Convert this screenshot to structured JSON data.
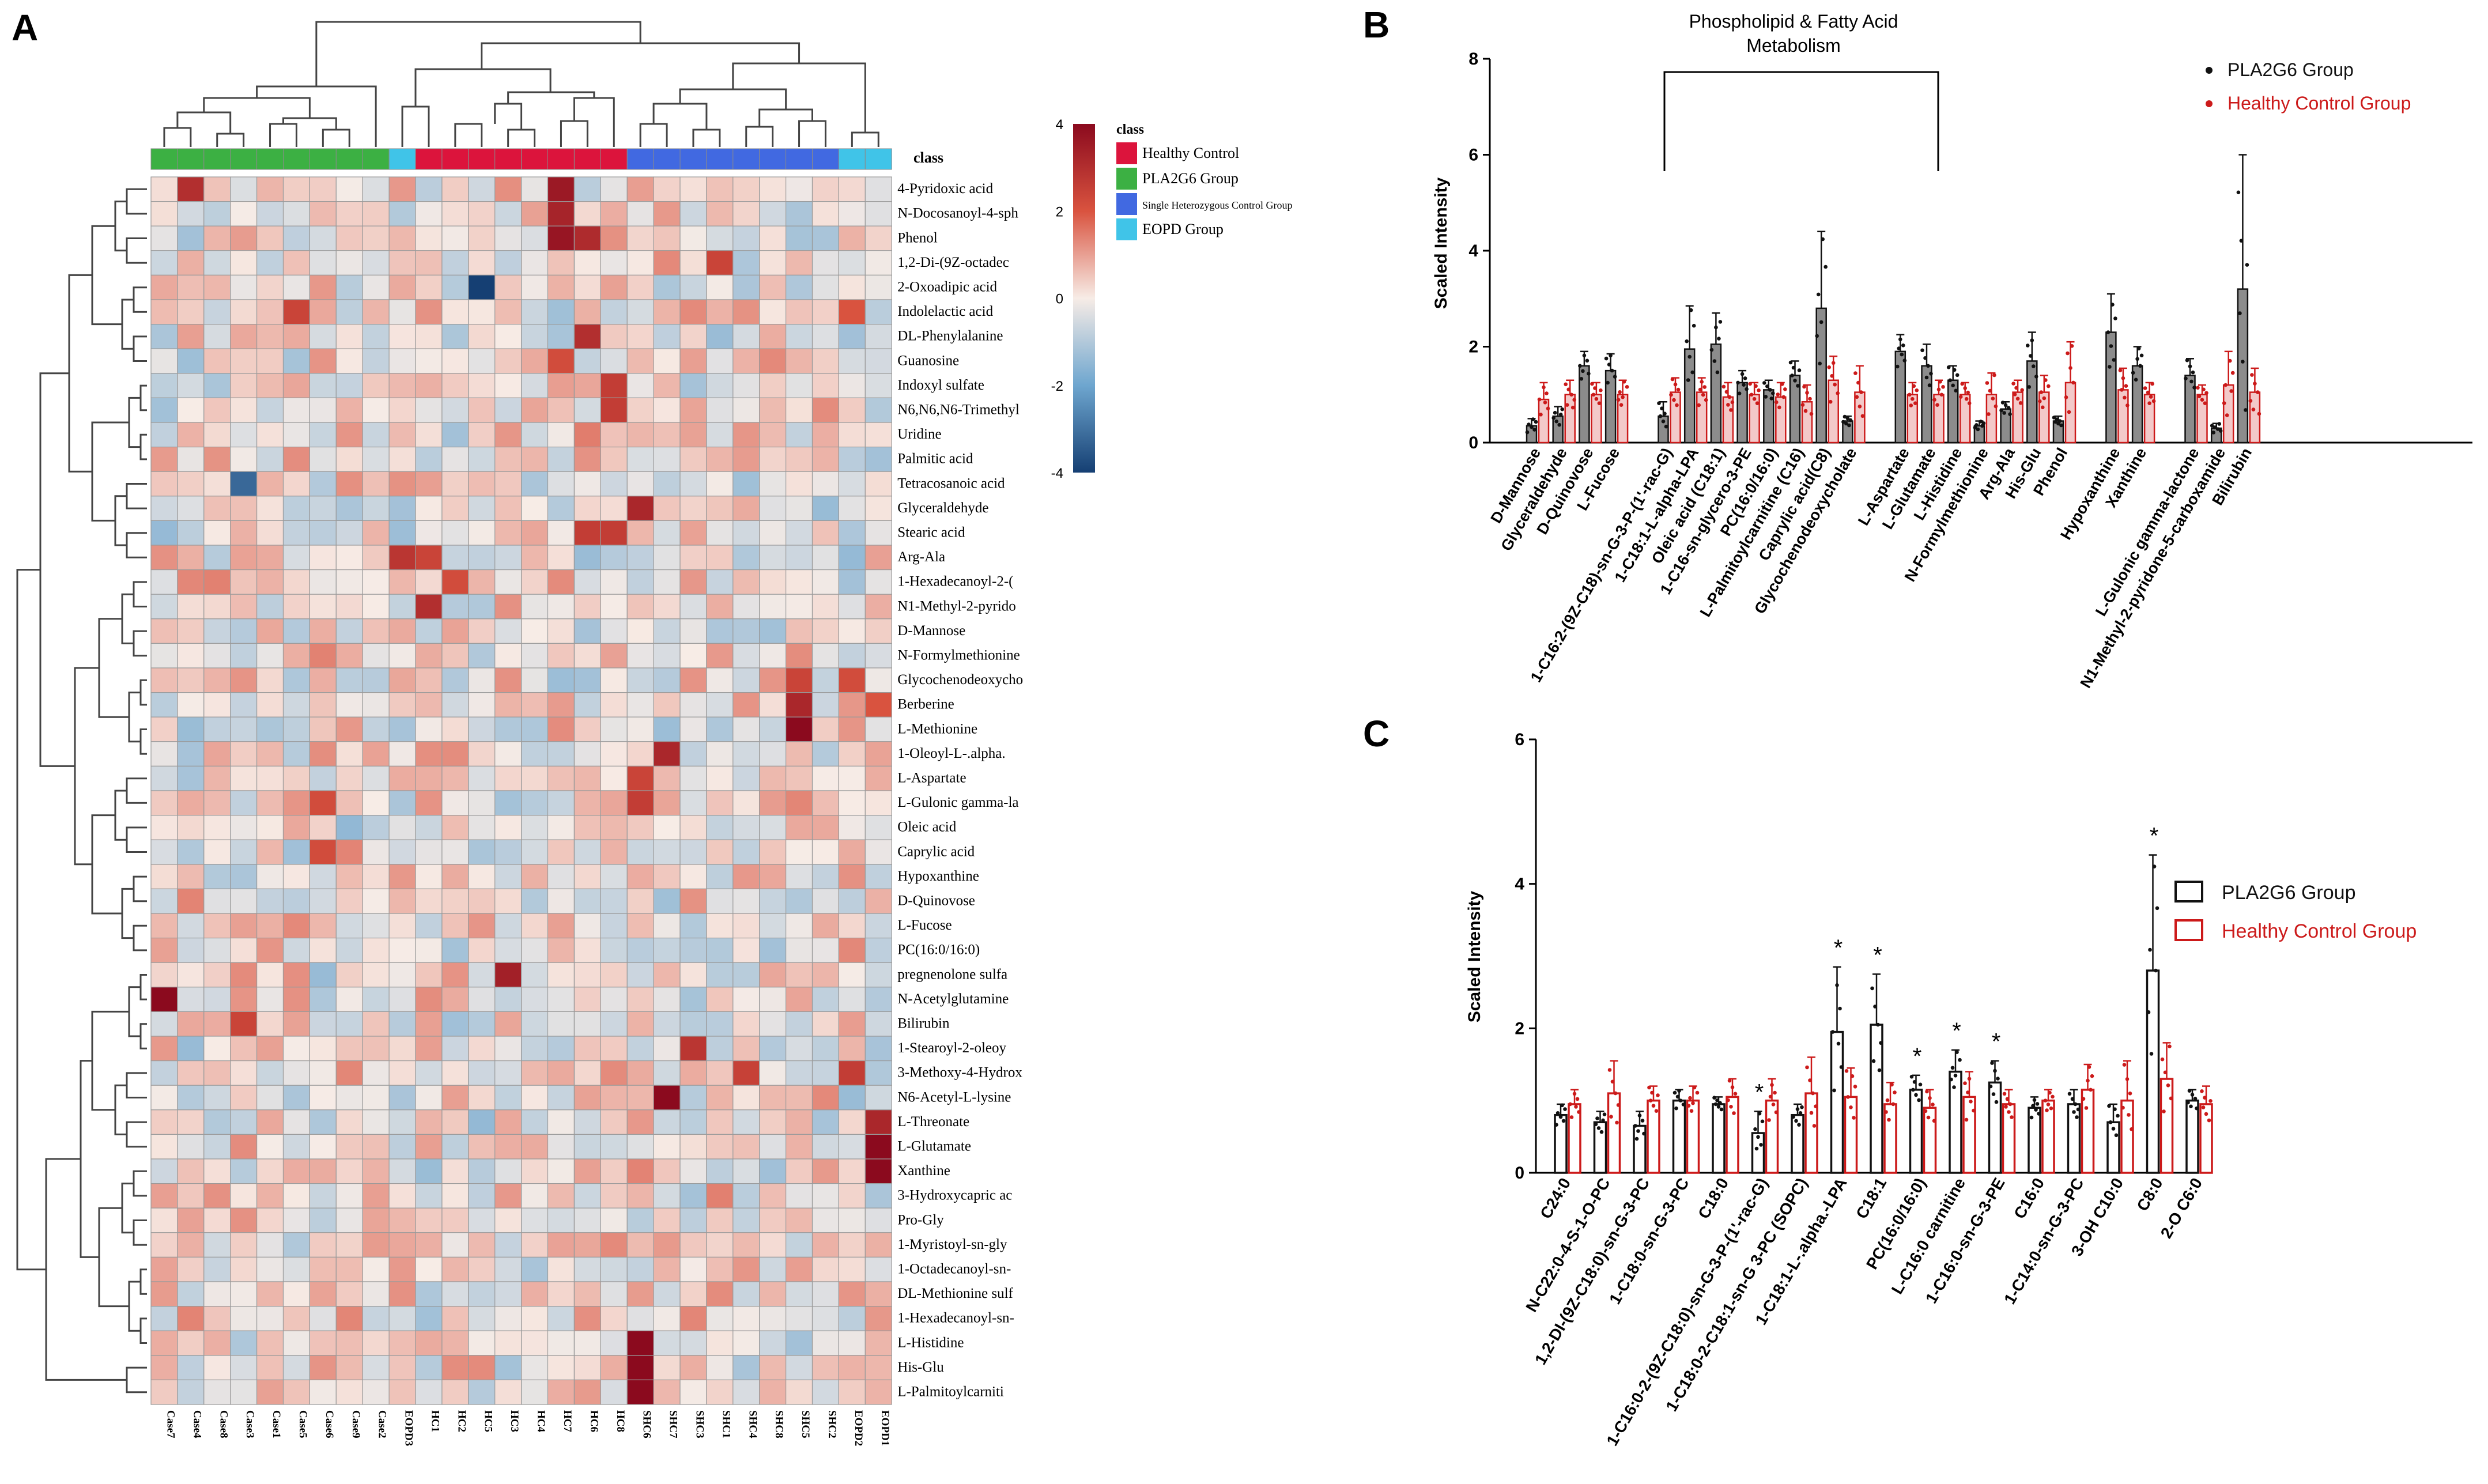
{
  "panels": {
    "A": "A",
    "B": "B",
    "C": "C"
  },
  "heatmap": {
    "class_label": "class",
    "legend_title": "class",
    "legend_entries": [
      {
        "label": "Healthy Control",
        "color": "#dc143c"
      },
      {
        "label": "PLA2G6 Group",
        "color": "#3cb043"
      },
      {
        "label": "Single Heterozygous Control Group",
        "color": "#4169e1"
      },
      {
        "label": "EOPD Group",
        "color": "#40c4e8"
      }
    ],
    "colorscale": {
      "ticks": [
        4,
        2,
        0,
        -2,
        -4
      ],
      "stops": [
        "#8b0a1e",
        "#d9533f",
        "#f7ece6",
        "#6ea6cf",
        "#153f73"
      ]
    },
    "columns": [
      "Case7",
      "Case4",
      "Case8",
      "Case3",
      "Case1",
      "Case5",
      "Case6",
      "Case9",
      "Case2",
      "EOPD3",
      "HC1",
      "HC2",
      "HC5",
      "HC3",
      "HC4",
      "HC7",
      "HC6",
      "HC8",
      "SHC6",
      "SHC7",
      "SHC3",
      "SHC1",
      "SHC4",
      "SHC8",
      "SHC5",
      "SHC2",
      "EOPD2",
      "EOPD1"
    ],
    "column_groups": [
      1,
      1,
      1,
      1,
      1,
      1,
      1,
      1,
      1,
      3,
      0,
      0,
      0,
      0,
      0,
      0,
      0,
      0,
      2,
      2,
      2,
      2,
      2,
      2,
      2,
      2,
      3,
      3
    ],
    "rows": [
      "4-Pyridoxic acid",
      "N-Docosanoyl-4-sph",
      "Phenol",
      "1,2-Di-(9Z-octadec",
      "2-Oxoadipic acid",
      "Indolelactic acid",
      "DL-Phenylalanine",
      "Guanosine",
      "Indoxyl sulfate",
      "N6,N6,N6-Trimethyl",
      "Uridine",
      "Palmitic acid",
      "Tetracosanoic acid",
      "Glyceraldehyde",
      "Stearic acid",
      "Arg-Ala",
      "1-Hexadecanoyl-2-(",
      "N1-Methyl-2-pyrido",
      "D-Mannose",
      "N-Formylmethionine",
      "Glycochenodeoxycho",
      "Berberine",
      "L-Methionine",
      "1-Oleoyl-L-.alpha.",
      "L-Aspartate",
      "L-Gulonic gamma-la",
      "Oleic acid",
      "Caprylic acid",
      "Hypoxanthine",
      "D-Quinovose",
      "L-Fucose",
      "PC(16:0/16:0)",
      "pregnenolone sulfa",
      "N-Acetylglutamine",
      "Bilirubin",
      "1-Stearoyl-2-oleoy",
      "3-Methoxy-4-Hydrox",
      "N6-Acetyl-L-lysine",
      "L-Threonate",
      "L-Glutamate",
      "Xanthine",
      "3-Hydroxycapric ac",
      "Pro-Gly",
      "1-Myristoyl-sn-gly",
      "1-Octadecanoyl-sn-",
      "DL-Methionine sulf",
      "1-Hexadecanoyl-sn-",
      "L-Histidine",
      "His-Glu",
      "L-Palmitoylcarniti"
    ],
    "highlights": [
      {
        "row": 0,
        "col": 1,
        "value": 3.0
      },
      {
        "row": 0,
        "col": 15,
        "value": 3.6
      },
      {
        "row": 1,
        "col": 15,
        "value": 3.3
      },
      {
        "row": 2,
        "col": 15,
        "value": 3.7
      },
      {
        "row": 2,
        "col": 16,
        "value": 3.1
      },
      {
        "row": 3,
        "col": 21,
        "value": 2.4
      },
      {
        "row": 4,
        "col": 12,
        "value": -4.2
      },
      {
        "row": 5,
        "col": 5,
        "value": 2.4
      },
      {
        "row": 5,
        "col": 26,
        "value": 2.0
      },
      {
        "row": 6,
        "col": 16,
        "value": 3.0
      },
      {
        "row": 7,
        "col": 15,
        "value": 2.2
      },
      {
        "row": 8,
        "col": 17,
        "value": 2.6
      },
      {
        "row": 9,
        "col": 17,
        "value": 2.6
      },
      {
        "row": 12,
        "col": 3,
        "value": -3.2
      },
      {
        "row": 13,
        "col": 18,
        "value": 3.2
      },
      {
        "row": 14,
        "col": 16,
        "value": 2.6
      },
      {
        "row": 14,
        "col": 17,
        "value": 2.6
      },
      {
        "row": 15,
        "col": 9,
        "value": 2.8
      },
      {
        "row": 15,
        "col": 10,
        "value": 2.4
      },
      {
        "row": 16,
        "col": 11,
        "value": 2.2
      },
      {
        "row": 17,
        "col": 10,
        "value": 3.0
      },
      {
        "row": 20,
        "col": 24,
        "value": 2.4
      },
      {
        "row": 20,
        "col": 26,
        "value": 2.2
      },
      {
        "row": 21,
        "col": 24,
        "value": 3.2
      },
      {
        "row": 21,
        "col": 27,
        "value": 2.0
      },
      {
        "row": 22,
        "col": 24,
        "value": 4.4
      },
      {
        "row": 23,
        "col": 19,
        "value": 3.2
      },
      {
        "row": 24,
        "col": 18,
        "value": 2.4
      },
      {
        "row": 25,
        "col": 18,
        "value": 2.6
      },
      {
        "row": 25,
        "col": 6,
        "value": 2.2
      },
      {
        "row": 27,
        "col": 6,
        "value": 2.2
      },
      {
        "row": 32,
        "col": 13,
        "value": 3.4
      },
      {
        "row": 33,
        "col": 0,
        "value": 4.1
      },
      {
        "row": 34,
        "col": 3,
        "value": 2.4
      },
      {
        "row": 35,
        "col": 20,
        "value": 2.8
      },
      {
        "row": 36,
        "col": 22,
        "value": 2.5
      },
      {
        "row": 36,
        "col": 26,
        "value": 2.6
      },
      {
        "row": 37,
        "col": 19,
        "value": 4.0
      },
      {
        "row": 38,
        "col": 27,
        "value": 3.2
      },
      {
        "row": 39,
        "col": 27,
        "value": 4.2
      },
      {
        "row": 40,
        "col": 27,
        "value": 4.2
      },
      {
        "row": 47,
        "col": 18,
        "value": 4.0
      },
      {
        "row": 48,
        "col": 18,
        "value": 4.2
      },
      {
        "row": 49,
        "col": 18,
        "value": 4.3
      }
    ]
  },
  "chart_data": [
    {
      "type": "bar",
      "panel": "B",
      "title": "",
      "xlabel": "",
      "ylabel": "Scaled Intensity",
      "ylim": [
        0,
        8
      ],
      "yticks": [
        0,
        2,
        4,
        6,
        8
      ],
      "annotation": "Phospholipid & Fatty Acid Metabolism",
      "legend_position": "top-right",
      "categories": [
        "D-Mannose",
        "Glyceraldehyde",
        "D-Quinovose",
        "L-Fucose",
        "1-C16:2-(9Z-C18)-sn-G-3-P-(1'-rac-G)",
        "1-C18:1-L-alpha-LPA",
        "Oleic acid (C18:1)",
        "1-C16-sn-glycero-3-PE",
        "PC(16:0/16:0)",
        "L-Palmitoylcarnitine (C16)",
        "Caprylic acid(C8)",
        "Glycochenodeoxycholate",
        "L-Aspartate",
        "L-Glutamate",
        "L-Histidine",
        "N-Formylmethionine",
        "Arg-Ala",
        "His-Glu",
        "Phenol",
        "Hypoxanthine",
        "Xanthine",
        "L-Gulonic gamma-lactone",
        "N1-Methyl-2-pyridone-5-carboxamide",
        "Bilirubin"
      ],
      "series": [
        {
          "name": "PLA2G6 Group",
          "color": "#111111",
          "values": [
            0.35,
            0.55,
            1.6,
            1.5,
            0.55,
            1.95,
            2.05,
            1.25,
            1.1,
            1.4,
            2.8,
            0.45,
            1.9,
            1.6,
            1.3,
            0.35,
            0.7,
            1.7,
            0.45,
            2.3,
            1.6,
            1.4,
            0.3,
            3.2
          ],
          "errors": [
            0.15,
            0.2,
            0.3,
            0.35,
            0.3,
            0.9,
            0.65,
            0.25,
            0.2,
            0.3,
            1.6,
            0.1,
            0.35,
            0.45,
            0.3,
            0.1,
            0.15,
            0.6,
            0.1,
            0.8,
            0.4,
            0.35,
            0.1,
            2.8
          ]
        },
        {
          "name": "Healthy Control Group",
          "color": "#cc1a1a",
          "values": [
            0.9,
            1.0,
            1.0,
            1.0,
            1.05,
            1.05,
            0.95,
            1.0,
            0.95,
            0.85,
            1.3,
            1.05,
            1.0,
            1.0,
            1.0,
            1.0,
            1.05,
            1.05,
            1.25,
            1.1,
            1.0,
            1.0,
            1.2,
            1.05
          ],
          "errors": [
            0.35,
            0.3,
            0.25,
            0.3,
            0.3,
            0.3,
            0.3,
            0.25,
            0.3,
            0.35,
            0.5,
            0.55,
            0.25,
            0.3,
            0.25,
            0.45,
            0.25,
            0.35,
            0.85,
            0.45,
            0.25,
            0.2,
            0.7,
            0.5
          ]
        }
      ]
    },
    {
      "type": "bar",
      "panel": "C",
      "title": "",
      "xlabel": "",
      "ylabel": "Scaled Intensity",
      "ylim": [
        0,
        6
      ],
      "yticks": [
        0,
        2,
        4,
        6
      ],
      "legend_position": "right",
      "categories": [
        "C24:0",
        "N-C22:0-4-S-1-O-PC",
        "1,2-DI-(9Z-C18:0)-sn-G-3-PC",
        "1-C18:0-sn-G-3-PC",
        "C18:0",
        "1-C16:0-2-(9Z-C18:0)-sn-G-3-P-(1'-rac-G)",
        "1-C18:0-2-C18:1-sn-G 3-PC (SOPC)",
        "1-C18:1-L-.alpha.-LPA",
        "C18:1",
        "PC(16:0/16:0)",
        "L-C16:0 carnitine",
        "1-C16:0-sn-G-3-PE",
        "C16:0",
        "1-C14:0-sn-G-3-PC",
        "3-OH C10:0",
        "C8:0",
        "2-O C6:0"
      ],
      "significance": [
        "",
        "",
        "",
        "",
        "",
        "*",
        "",
        "*",
        "*",
        "*",
        "*",
        "*",
        "",
        "",
        "",
        "*",
        ""
      ],
      "series": [
        {
          "name": "PLA2G6 Group",
          "color": "#111111",
          "values": [
            0.8,
            0.7,
            0.65,
            1.0,
            0.95,
            0.55,
            0.8,
            1.95,
            2.05,
            1.15,
            1.4,
            1.25,
            0.9,
            0.95,
            0.7,
            2.8,
            1.0
          ],
          "errors": [
            0.15,
            0.15,
            0.2,
            0.15,
            0.1,
            0.3,
            0.15,
            0.9,
            0.7,
            0.2,
            0.3,
            0.3,
            0.15,
            0.2,
            0.25,
            1.6,
            0.15
          ]
        },
        {
          "name": "Healthy Control Group",
          "color": "#cc1a1a",
          "values": [
            0.95,
            1.1,
            1.0,
            1.0,
            1.05,
            1.0,
            1.1,
            1.05,
            0.95,
            0.9,
            1.05,
            0.95,
            1.0,
            1.15,
            1.0,
            1.3,
            0.95
          ],
          "errors": [
            0.2,
            0.45,
            0.2,
            0.2,
            0.25,
            0.3,
            0.5,
            0.4,
            0.3,
            0.25,
            0.35,
            0.2,
            0.15,
            0.35,
            0.55,
            0.5,
            0.25
          ]
        }
      ]
    }
  ]
}
